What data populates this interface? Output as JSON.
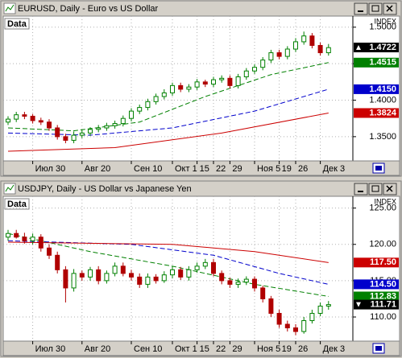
{
  "chart_data": [
    {
      "type": "candlestick",
      "title": "EURUSD, Daily - Euro vs US Dollar",
      "index_label": "INDEX",
      "data_label": "Data",
      "up_color": "#008000",
      "down_color": "#b00000",
      "categories": [
        null,
        null,
        null,
        "Июл 30",
        null,
        null,
        null,
        null,
        null,
        "Авг 20",
        null,
        null,
        null,
        null,
        null,
        "Сен 10",
        null,
        null,
        null,
        null,
        "Окт 1",
        null,
        null,
        "15",
        null,
        "22",
        null,
        "29",
        null,
        null,
        "Ноя 5",
        null,
        null,
        "19",
        null,
        "26",
        null,
        null,
        "Дек 3",
        null
      ],
      "open": [
        1.37,
        1.374,
        1.38,
        1.378,
        1.372,
        1.37,
        1.362,
        1.35,
        1.345,
        1.352,
        1.355,
        1.36,
        1.362,
        1.365,
        1.368,
        1.375,
        1.385,
        1.39,
        1.398,
        1.405,
        1.41,
        1.42,
        1.415,
        1.418,
        1.425,
        1.422,
        1.428,
        1.43,
        1.42,
        1.432,
        1.44,
        1.445,
        1.455,
        1.465,
        1.46,
        1.47,
        1.48,
        1.488,
        1.475,
        1.465
      ],
      "high": [
        1.378,
        1.384,
        1.384,
        1.381,
        1.376,
        1.374,
        1.366,
        1.354,
        1.357,
        1.359,
        1.363,
        1.366,
        1.369,
        1.372,
        1.379,
        1.389,
        1.394,
        1.402,
        1.409,
        1.415,
        1.424,
        1.424,
        1.422,
        1.429,
        1.428,
        1.432,
        1.434,
        1.434,
        1.436,
        1.444,
        1.449,
        1.459,
        1.469,
        1.469,
        1.474,
        1.485,
        1.494,
        1.492,
        1.479,
        1.477
      ],
      "low": [
        1.366,
        1.37,
        1.374,
        1.368,
        1.366,
        1.358,
        1.346,
        1.341,
        1.341,
        1.348,
        1.351,
        1.356,
        1.358,
        1.361,
        1.364,
        1.371,
        1.381,
        1.386,
        1.394,
        1.401,
        1.406,
        1.411,
        1.411,
        1.414,
        1.418,
        1.418,
        1.424,
        1.416,
        1.416,
        1.428,
        1.436,
        1.441,
        1.451,
        1.456,
        1.456,
        1.466,
        1.476,
        1.471,
        1.461,
        1.461
      ],
      "close": [
        1.374,
        1.38,
        1.378,
        1.372,
        1.37,
        1.362,
        1.35,
        1.345,
        1.352,
        1.355,
        1.36,
        1.362,
        1.365,
        1.368,
        1.375,
        1.385,
        1.39,
        1.398,
        1.405,
        1.41,
        1.42,
        1.415,
        1.418,
        1.425,
        1.422,
        1.428,
        1.43,
        1.42,
        1.432,
        1.44,
        1.445,
        1.455,
        1.465,
        1.46,
        1.47,
        1.48,
        1.488,
        1.475,
        1.465,
        1.472
      ],
      "series": [
        {
          "color": "#008000",
          "dashed": true,
          "x": [
            0,
            8,
            16,
            24,
            32,
            39
          ],
          "values": [
            1.362,
            1.358,
            1.37,
            1.405,
            1.435,
            1.4515
          ]
        },
        {
          "color": "#0000cc",
          "dashed": true,
          "x": [
            0,
            10,
            20,
            30,
            39
          ],
          "values": [
            1.355,
            1.352,
            1.362,
            1.385,
            1.415
          ]
        },
        {
          "color": "#cc0000",
          "dashed": false,
          "x": [
            0,
            13,
            26,
            39
          ],
          "values": [
            1.33,
            1.335,
            1.355,
            1.3824
          ]
        }
      ],
      "ylim": [
        1.319,
        1.513
      ],
      "yticks": [
        {
          "value": 1.35,
          "label": "1.3500"
        },
        {
          "value": 1.4,
          "label": "1.4000"
        },
        {
          "value": 1.45,
          "label": "1.4500"
        },
        {
          "value": 1.5,
          "label": "1.5000"
        }
      ],
      "price_labels": [
        {
          "value": 1.4722,
          "label": "1.4722",
          "color": "#000000",
          "direction": "up"
        },
        {
          "value": 1.4515,
          "label": "1.4515",
          "color": "#008000"
        },
        {
          "value": 1.415,
          "label": "1.4150",
          "color": "#0000cc"
        },
        {
          "value": 1.3824,
          "label": "1.3824",
          "color": "#cc0000"
        }
      ],
      "grid": true
    },
    {
      "type": "candlestick",
      "title": "USDJPY, Daily - US Dollar vs Japanese Yen",
      "index_label": "INDEX",
      "data_label": "Data",
      "up_color": "#008000",
      "down_color": "#b00000",
      "categories": [
        null,
        null,
        null,
        "Июл 30",
        null,
        null,
        null,
        null,
        null,
        "Авг 20",
        null,
        null,
        null,
        null,
        null,
        "Сен 10",
        null,
        null,
        null,
        null,
        "Окт 1",
        null,
        null,
        "15",
        null,
        "22",
        null,
        "29",
        null,
        null,
        "Ноя 5",
        null,
        null,
        "19",
        null,
        "26",
        null,
        null,
        "Дек 3",
        null
      ],
      "open": [
        121.0,
        121.5,
        121.0,
        120.5,
        121.0,
        119.5,
        118.5,
        116.5,
        114.0,
        116.0,
        115.5,
        116.5,
        115.0,
        116.0,
        117.0,
        116.0,
        115.5,
        114.5,
        115.5,
        115.0,
        115.8,
        116.5,
        115.5,
        116.5,
        117.0,
        117.5,
        116.0,
        115.0,
        114.5,
        114.8,
        115.2,
        114.0,
        112.5,
        110.5,
        109.0,
        108.5,
        108.0,
        109.5,
        110.5,
        111.5
      ],
      "high": [
        122.0,
        122.0,
        121.6,
        121.5,
        121.4,
        120.0,
        119.0,
        117.0,
        116.6,
        116.4,
        116.9,
        117.0,
        116.4,
        117.5,
        117.5,
        116.5,
        116.0,
        116.0,
        115.9,
        116.3,
        117.0,
        116.9,
        117.0,
        117.5,
        118.0,
        118.0,
        116.4,
        115.4,
        115.3,
        115.6,
        115.6,
        114.3,
        112.9,
        111.0,
        109.5,
        109.0,
        110.0,
        111.0,
        112.0,
        112.2
      ],
      "low": [
        120.5,
        120.8,
        120.1,
        120.0,
        119.0,
        118.0,
        116.0,
        112.0,
        113.5,
        115.0,
        115.0,
        114.5,
        114.6,
        115.6,
        115.6,
        115.0,
        114.0,
        114.0,
        114.6,
        114.7,
        115.3,
        115.1,
        115.0,
        116.1,
        116.6,
        115.6,
        114.5,
        114.0,
        114.0,
        114.4,
        113.5,
        112.0,
        110.0,
        108.5,
        108.0,
        107.5,
        107.7,
        109.1,
        110.1,
        111.0
      ],
      "close": [
        121.5,
        121.0,
        120.5,
        121.0,
        119.5,
        118.5,
        116.5,
        114.0,
        116.0,
        115.5,
        116.5,
        115.0,
        116.0,
        117.0,
        116.0,
        115.5,
        114.5,
        115.5,
        115.0,
        115.8,
        116.5,
        115.5,
        116.5,
        117.0,
        117.5,
        116.0,
        115.0,
        114.5,
        114.8,
        115.2,
        114.0,
        112.5,
        110.5,
        109.0,
        108.5,
        108.0,
        109.5,
        110.5,
        111.5,
        111.71
      ],
      "series": [
        {
          "color": "#008000",
          "dashed": true,
          "x": [
            0,
            10,
            20,
            30,
            39
          ],
          "values": [
            121.5,
            119.0,
            117.0,
            114.5,
            112.83
          ]
        },
        {
          "color": "#0000cc",
          "dashed": true,
          "x": [
            0,
            15,
            25,
            33,
            39
          ],
          "values": [
            120.5,
            120.0,
            118.5,
            116.0,
            114.5
          ]
        },
        {
          "color": "#cc0000",
          "dashed": false,
          "x": [
            0,
            20,
            30,
            39
          ],
          "values": [
            120.3,
            120.0,
            119.0,
            117.5
          ]
        }
      ],
      "ylim": [
        106.9,
        126.4
      ],
      "yticks": [
        {
          "value": 110,
          "label": "110.00"
        },
        {
          "value": 115,
          "label": "115.00"
        },
        {
          "value": 120,
          "label": "120.00"
        },
        {
          "value": 125,
          "label": "125.00"
        }
      ],
      "price_labels": [
        {
          "value": 117.5,
          "label": "117.50",
          "color": "#cc0000"
        },
        {
          "value": 114.5,
          "label": "114.50",
          "color": "#0000cc"
        },
        {
          "value": 112.83,
          "label": "112.83",
          "color": "#008000"
        },
        {
          "value": 111.71,
          "label": "111.71",
          "color": "#000000",
          "direction": "down"
        }
      ],
      "grid": true
    }
  ]
}
